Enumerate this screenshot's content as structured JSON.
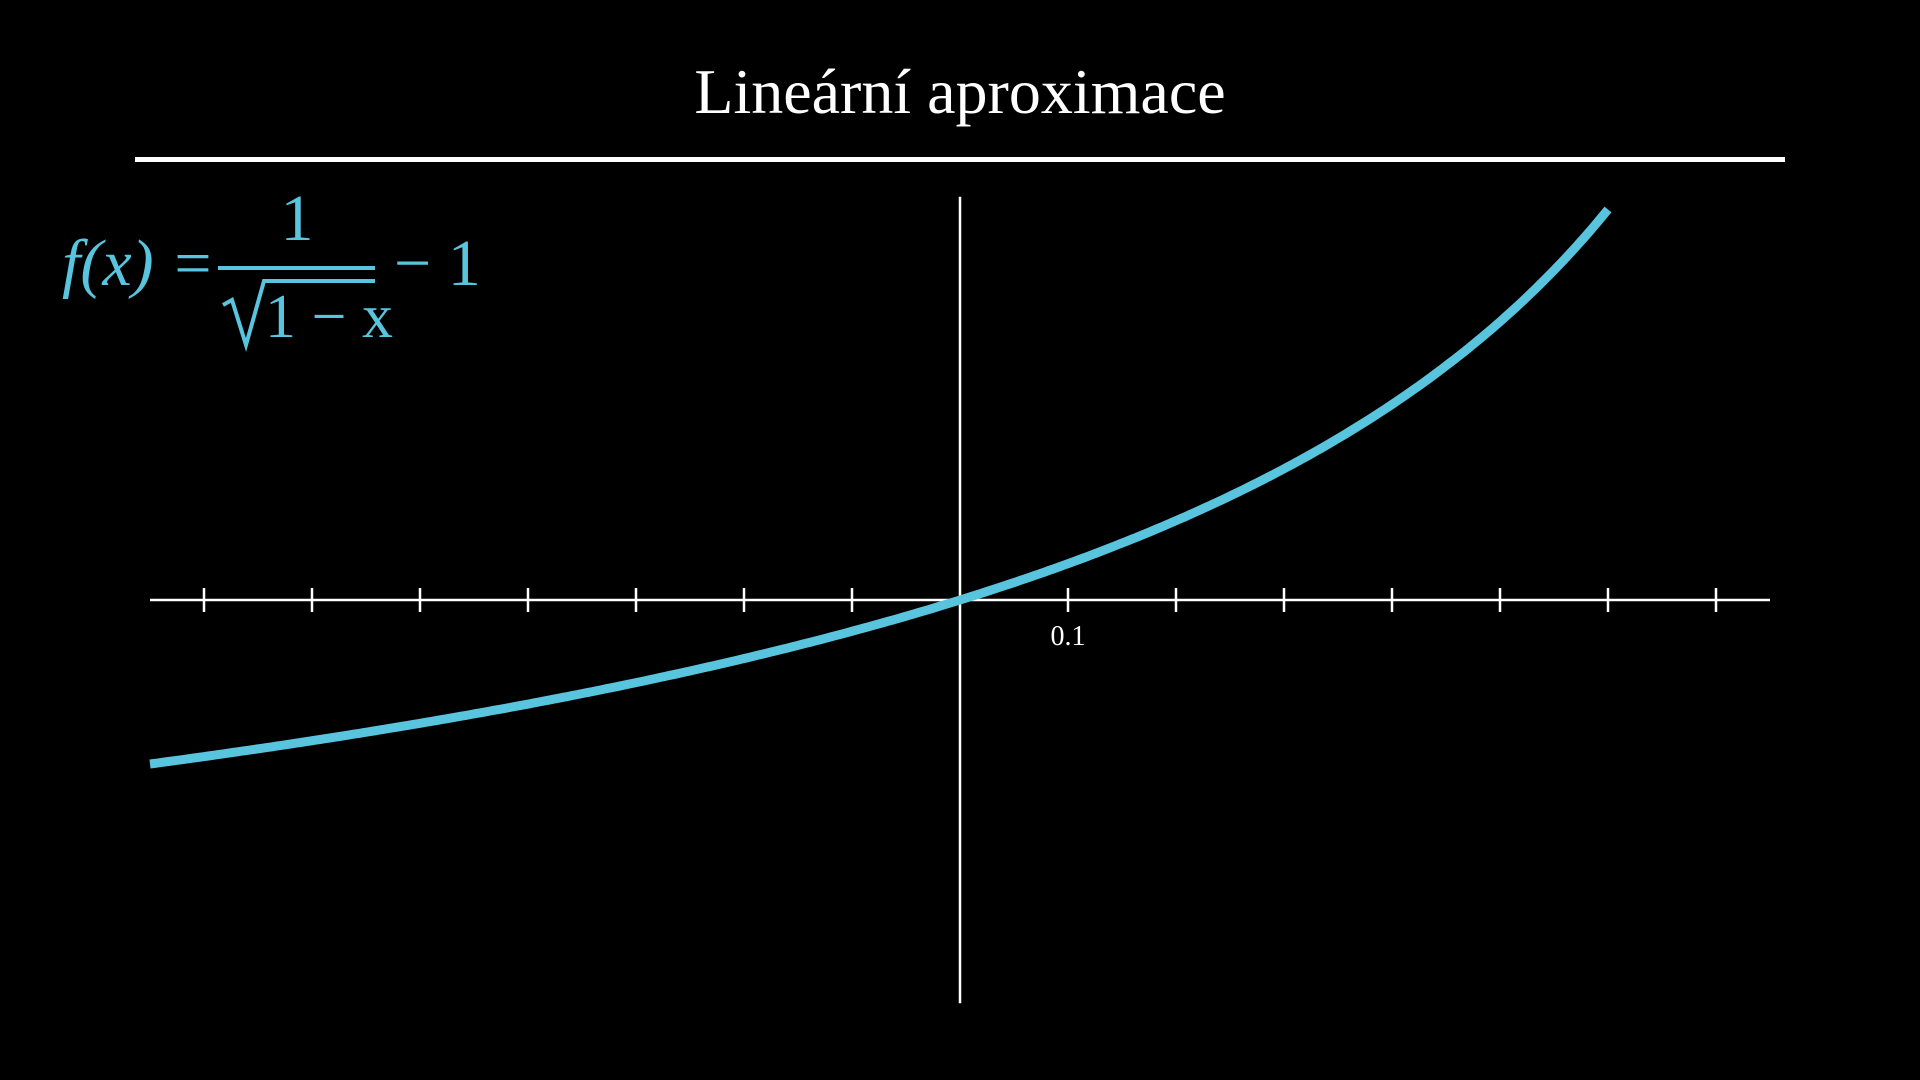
{
  "title": "Lineární aproximace",
  "formula": {
    "lhs": "f(x) =",
    "numerator": "1",
    "denominator": "1 − x",
    "tail": "− 1",
    "color": "#58C4DD"
  },
  "chart_data": {
    "type": "line",
    "function": "f(x) = 1/sqrt(1-x) - 1",
    "xlim": [
      -0.75,
      0.75
    ],
    "ylim": [
      -0.6,
      0.6
    ],
    "x_ticks": [
      -0.7,
      -0.6,
      -0.5,
      -0.4,
      -0.3,
      -0.2,
      -0.1,
      0,
      0.1,
      0.2,
      0.3,
      0.4,
      0.5,
      0.6,
      0.7
    ],
    "x_tick_labels": [
      {
        "value": 0.1,
        "label": "0.1"
      }
    ],
    "grid": false,
    "series": [
      {
        "x_range": [
          -0.75,
          0.6
        ],
        "color": "#58C4DD"
      }
    ],
    "axis_color": "#FFFFFF",
    "background": "#000000"
  }
}
